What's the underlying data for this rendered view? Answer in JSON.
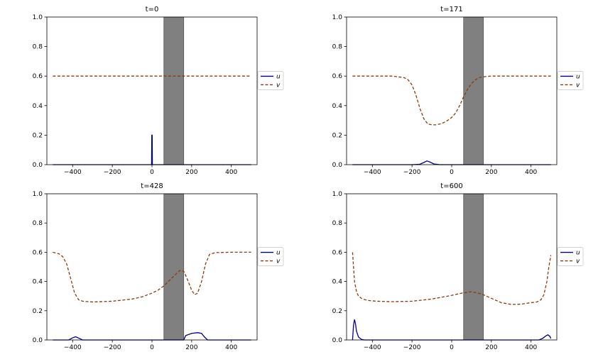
{
  "colors": {
    "u": "#00008b",
    "v": "#8b3a0f",
    "rect_fill": "#808080",
    "rect_edge": "#555555",
    "axes": "#000000"
  },
  "chart_data": [
    {
      "type": "line",
      "title": "t=0",
      "xlim": [
        -530,
        530
      ],
      "ylim": [
        0,
        1.0
      ],
      "xticks": [
        -400,
        -200,
        0,
        200,
        400
      ],
      "xtick_labels": [
        "−400",
        "−200",
        "0",
        "200",
        "400"
      ],
      "yticks": [
        0.0,
        0.2,
        0.4,
        0.6,
        0.8,
        1.0
      ],
      "ytick_labels": [
        "0.0",
        "0.2",
        "0.4",
        "0.6",
        "0.8",
        "1.0"
      ],
      "rect": {
        "x0": 60,
        "x1": 160,
        "y0": 0,
        "y1": 1.0
      },
      "legend": [
        "u",
        "v"
      ],
      "legend_position": "right",
      "series": [
        {
          "name": "u",
          "style": "solid",
          "x": [
            -500,
            -2,
            -1,
            0,
            1,
            2,
            500
          ],
          "y": [
            0,
            0,
            0.2,
            0.2,
            0.2,
            0,
            0
          ]
        },
        {
          "name": "v",
          "style": "dashed",
          "x": [
            -500,
            500
          ],
          "y": [
            0.6,
            0.6
          ]
        }
      ]
    },
    {
      "type": "line",
      "title": "t=171",
      "xlim": [
        -530,
        530
      ],
      "ylim": [
        0,
        1.0
      ],
      "xticks": [
        -400,
        -200,
        0,
        200,
        400
      ],
      "xtick_labels": [
        "−400",
        "−200",
        "0",
        "200",
        "400"
      ],
      "yticks": [
        0.0,
        0.2,
        0.4,
        0.6,
        0.8,
        1.0
      ],
      "ytick_labels": [
        "0.0",
        "0.2",
        "0.4",
        "0.6",
        "0.8",
        "1.0"
      ],
      "rect": {
        "x0": 60,
        "x1": 160,
        "y0": 0,
        "y1": 1.0
      },
      "legend": [
        "u",
        "v"
      ],
      "legend_position": "right",
      "series": [
        {
          "name": "u",
          "style": "solid",
          "x": [
            -500,
            -200,
            -160,
            -140,
            -125,
            -110,
            -90,
            -60,
            0,
            500
          ],
          "y": [
            0,
            0,
            0.003,
            0.015,
            0.025,
            0.018,
            0.005,
            0,
            0,
            0
          ]
        },
        {
          "name": "v",
          "style": "dashed",
          "x": [
            -500,
            -300,
            -240,
            -220,
            -200,
            -180,
            -160,
            -140,
            -120,
            -100,
            -80,
            -60,
            -40,
            -20,
            0,
            20,
            40,
            60,
            80,
            100,
            120,
            140,
            160,
            180,
            200,
            240,
            300,
            500
          ],
          "y": [
            0.6,
            0.6,
            0.59,
            0.575,
            0.54,
            0.47,
            0.38,
            0.31,
            0.275,
            0.27,
            0.27,
            0.275,
            0.285,
            0.3,
            0.32,
            0.35,
            0.4,
            0.46,
            0.51,
            0.55,
            0.575,
            0.59,
            0.595,
            0.598,
            0.6,
            0.6,
            0.6,
            0.6
          ]
        }
      ]
    },
    {
      "type": "line",
      "title": "t=428",
      "xlim": [
        -530,
        530
      ],
      "ylim": [
        0,
        1.0
      ],
      "xticks": [
        -400,
        -200,
        0,
        200,
        400
      ],
      "xtick_labels": [
        "−400",
        "−200",
        "0",
        "200",
        "400"
      ],
      "yticks": [
        0.0,
        0.2,
        0.4,
        0.6,
        0.8,
        1.0
      ],
      "ytick_labels": [
        "0.0",
        "0.2",
        "0.4",
        "0.6",
        "0.8",
        "1.0"
      ],
      "rect": {
        "x0": 60,
        "x1": 160,
        "y0": 0,
        "y1": 1.0
      },
      "legend": [
        "u",
        "v"
      ],
      "legend_position": "right",
      "series": [
        {
          "name": "u",
          "style": "solid",
          "x": [
            -500,
            -420,
            -400,
            -385,
            -370,
            -350,
            0,
            160,
            170,
            200,
            230,
            250,
            265,
            280,
            500
          ],
          "y": [
            0,
            0,
            0.015,
            0.022,
            0.013,
            0,
            0,
            0,
            0.03,
            0.045,
            0.05,
            0.045,
            0.02,
            0,
            0
          ]
        },
        {
          "name": "v",
          "style": "dashed",
          "x": [
            -500,
            -470,
            -450,
            -430,
            -410,
            -390,
            -370,
            -350,
            -300,
            -200,
            -100,
            -50,
            0,
            30,
            60,
            90,
            120,
            140,
            160,
            180,
            200,
            215,
            230,
            250,
            270,
            290,
            320,
            400,
            500
          ],
          "y": [
            0.6,
            0.59,
            0.57,
            0.52,
            0.42,
            0.32,
            0.275,
            0.265,
            0.26,
            0.265,
            0.28,
            0.295,
            0.32,
            0.34,
            0.37,
            0.41,
            0.45,
            0.475,
            0.47,
            0.41,
            0.34,
            0.31,
            0.32,
            0.4,
            0.52,
            0.585,
            0.598,
            0.6,
            0.6
          ]
        }
      ]
    },
    {
      "type": "line",
      "title": "t=600",
      "xlim": [
        -530,
        530
      ],
      "ylim": [
        0,
        1.0
      ],
      "xticks": [
        -400,
        -200,
        0,
        200,
        400
      ],
      "xtick_labels": [
        "−400",
        "−200",
        "0",
        "200",
        "400"
      ],
      "yticks": [
        0.0,
        0.2,
        0.4,
        0.6,
        0.8,
        1.0
      ],
      "ytick_labels": [
        "0.0",
        "0.2",
        "0.4",
        "0.6",
        "0.8",
        "1.0"
      ],
      "rect": {
        "x0": 60,
        "x1": 160,
        "y0": 0,
        "y1": 1.0
      },
      "legend": [
        "u",
        "v"
      ],
      "legend_position": "right",
      "series": [
        {
          "name": "u",
          "style": "solid",
          "x": [
            -500,
            -495,
            -490,
            -485,
            -480,
            -470,
            -455,
            -440,
            0,
            440,
            460,
            475,
            485,
            495,
            500
          ],
          "y": [
            0,
            0.1,
            0.14,
            0.11,
            0.06,
            0.02,
            0.004,
            0,
            0,
            0,
            0.012,
            0.028,
            0.035,
            0.025,
            0.01
          ]
        },
        {
          "name": "v",
          "style": "dashed",
          "x": [
            -500,
            -495,
            -490,
            -480,
            -470,
            -450,
            -420,
            -380,
            -300,
            -200,
            -100,
            0,
            50,
            100,
            150,
            200,
            250,
            300,
            350,
            400,
            430,
            450,
            465,
            480,
            490,
            500
          ],
          "y": [
            0.6,
            0.5,
            0.4,
            0.33,
            0.3,
            0.28,
            0.27,
            0.265,
            0.262,
            0.265,
            0.28,
            0.305,
            0.32,
            0.33,
            0.315,
            0.285,
            0.255,
            0.243,
            0.245,
            0.255,
            0.26,
            0.275,
            0.31,
            0.4,
            0.5,
            0.58
          ]
        }
      ]
    }
  ]
}
